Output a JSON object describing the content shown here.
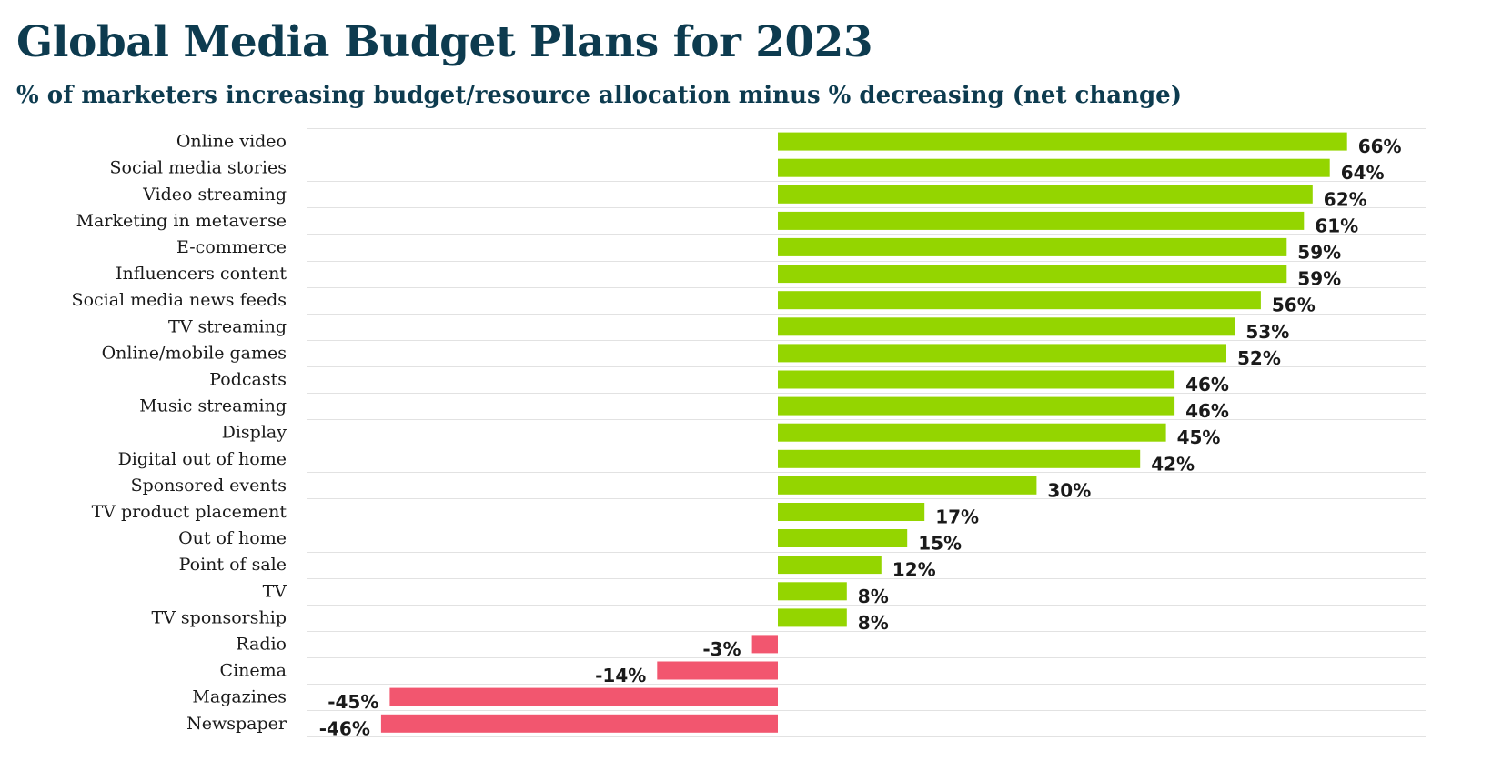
{
  "chart_data": {
    "type": "bar",
    "orientation": "horizontal",
    "title": "Global Media Budget Plans for 2023",
    "subtitle": "% of marketers increasing budget/resource allocation minus % decreasing (net change)",
    "xlabel": "",
    "ylabel": "",
    "unit": "%",
    "xlim": [
      -55,
      75
    ],
    "grid": true,
    "legend": "none",
    "categories": [
      "Online video",
      "Social media stories",
      "Video streaming",
      "Marketing in metaverse",
      "E-commerce",
      "Influencers content",
      "Social media news feeds",
      "TV streaming",
      "Online/mobile games",
      "Podcasts",
      "Music streaming",
      "Display",
      "Digital out of home",
      "Sponsored events",
      "TV product placement",
      "Out of home",
      "Point of sale",
      "TV",
      "TV sponsorship",
      "Radio",
      "Cinema",
      "Magazines",
      "Newspaper"
    ],
    "values": [
      66,
      64,
      62,
      61,
      59,
      59,
      56,
      53,
      52,
      46,
      46,
      45,
      42,
      30,
      17,
      15,
      12,
      8,
      8,
      -3,
      -14,
      -45,
      -46
    ],
    "data_labels": [
      "66%",
      "64%",
      "62%",
      "61%",
      "59%",
      "59%",
      "56%",
      "53%",
      "52%",
      "46%",
      "46%",
      "45%",
      "42%",
      "30%",
      "17%",
      "15%",
      "12%",
      "8%",
      "8%",
      "-3%",
      "-14%",
      "-45%",
      "-46%"
    ],
    "colors": {
      "positive": "#94d500",
      "negative": "#f2566f",
      "title": "#0d3b4f",
      "text": "#1a1a1a",
      "grid": "#e2e2e2"
    }
  }
}
